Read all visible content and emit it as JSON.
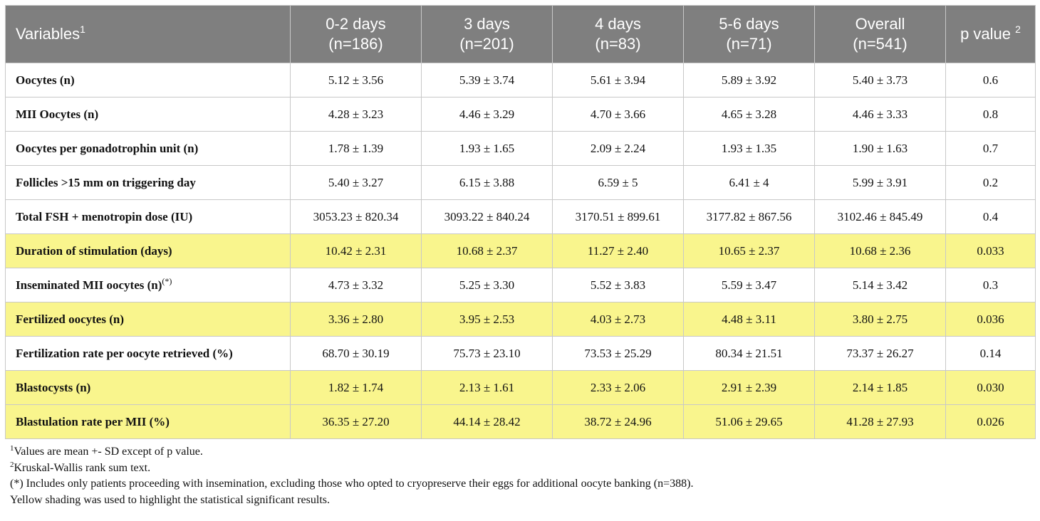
{
  "table": {
    "header": {
      "variables": "Variables",
      "variables_sup": "1",
      "columns": [
        {
          "line1": "0-2 days",
          "line2": "(n=186)"
        },
        {
          "line1": "3 days",
          "line2": "(n=201)"
        },
        {
          "line1": "4 days",
          "line2": "(n=83)"
        },
        {
          "line1": "5-6 days",
          "line2": "(n=71)"
        },
        {
          "line1": "Overall",
          "line2": "(n=541)"
        }
      ],
      "pvalue": "p value ",
      "pvalue_sup": "2"
    },
    "rows": [
      {
        "label": "Oocytes (n)",
        "sup": "",
        "highlight": false,
        "values": [
          "5.12 ± 3.56",
          "5.39 ± 3.74",
          "5.61 ± 3.94",
          "5.89 ± 3.92",
          "5.40 ± 3.73"
        ],
        "p": "0.6"
      },
      {
        "label": "MII Oocytes (n)",
        "sup": "",
        "highlight": false,
        "values": [
          "4.28 ± 3.23",
          "4.46 ± 3.29",
          "4.70 ± 3.66",
          "4.65 ± 3.28",
          "4.46 ± 3.33"
        ],
        "p": "0.8"
      },
      {
        "label": "Oocytes per gonadotrophin unit (n)",
        "sup": "",
        "highlight": false,
        "values": [
          "1.78 ± 1.39",
          "1.93 ± 1.65",
          "2.09 ± 2.24",
          "1.93 ± 1.35",
          "1.90 ± 1.63"
        ],
        "p": "0.7"
      },
      {
        "label": "Follicles >15 mm on triggering day",
        "sup": "",
        "highlight": false,
        "values": [
          "5.40 ± 3.27",
          "6.15 ± 3.88",
          "6.59 ± 5",
          "6.41 ± 4",
          "5.99 ± 3.91"
        ],
        "p": "0.2"
      },
      {
        "label": "Total FSH + menotropin dose (IU)",
        "sup": "",
        "highlight": false,
        "values": [
          "3053.23 ± 820.34",
          "3093.22 ± 840.24",
          "3170.51 ± 899.61",
          "3177.82 ± 867.56",
          "3102.46 ± 845.49"
        ],
        "p": "0.4"
      },
      {
        "label": "Duration of stimulation (days)",
        "sup": "",
        "highlight": true,
        "values": [
          "10.42 ± 2.31",
          "10.68 ± 2.37",
          "11.27 ± 2.40",
          "10.65 ± 2.37",
          "10.68 ± 2.36"
        ],
        "p": "0.033"
      },
      {
        "label": "Inseminated MII oocytes (n)",
        "sup": "(*)",
        "highlight": false,
        "values": [
          "4.73 ± 3.32",
          "5.25 ± 3.30",
          "5.52 ± 3.83",
          "5.59 ± 3.47",
          "5.14 ± 3.42"
        ],
        "p": "0.3"
      },
      {
        "label": "Fertilized oocytes (n)",
        "sup": "",
        "highlight": true,
        "values": [
          "3.36 ± 2.80",
          "3.95 ± 2.53",
          "4.03 ± 2.73",
          "4.48 ± 3.11",
          "3.80 ± 2.75"
        ],
        "p": "0.036"
      },
      {
        "label": "Fertilization rate per oocyte retrieved (%)",
        "sup": "",
        "highlight": false,
        "values": [
          "68.70 ± 30.19",
          "75.73 ± 23.10",
          "73.53 ± 25.29",
          "80.34 ± 21.51",
          "73.37 ± 26.27"
        ],
        "p": "0.14"
      },
      {
        "label": "Blastocysts (n)",
        "sup": "",
        "highlight": true,
        "values": [
          "1.82 ± 1.74",
          "2.13 ± 1.61",
          "2.33 ± 2.06",
          "2.91 ± 2.39",
          "2.14 ± 1.85"
        ],
        "p": "0.030"
      },
      {
        "label": "Blastulation rate per MII (%)",
        "sup": "",
        "highlight": true,
        "values": [
          "36.35 ± 27.20",
          "44.14 ± 28.42",
          "38.72 ± 24.96",
          "51.06 ± 29.65",
          "41.28 ± 27.93"
        ],
        "p": "0.026"
      }
    ]
  },
  "footnotes": {
    "note1_mark": "1",
    "note1": "Values are mean +- SD except of p value.",
    "note2_mark": "2",
    "note2": "Kruskal-Wallis rank sum text.",
    "note3": "(*) Includes only patients proceeding with insemination, excluding those who opted to cryopreserve their eggs for additional oocyte banking (n=388).",
    "note4": "Yellow shading was used to highlight the statistical significant results."
  },
  "colors": {
    "header_bg": "#7f7f7f",
    "highlight": "#f9f58d",
    "border": "#c8c8c8"
  }
}
